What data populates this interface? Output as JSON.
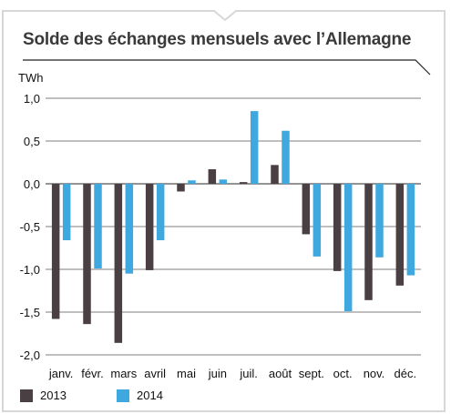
{
  "title": "Solde des échanges mensuels avec l’Allemagne",
  "colors": {
    "2013": "#4a3f43",
    "2014": "#3fa9df",
    "grid": "#555555",
    "frame": "#d7d7d7"
  },
  "chart_data": {
    "type": "bar",
    "title": "Solde des échanges mensuels avec l’Allemagne",
    "ylabel": "TWh",
    "xlabel": "",
    "ylim": [
      -2.0,
      1.0
    ],
    "yticks": [
      1.0,
      0.5,
      0.0,
      -0.5,
      -1.0,
      -1.5,
      -2.0
    ],
    "ytick_labels": [
      "1,0",
      "0,5",
      "0,0",
      "-0,5",
      "-1,0",
      "-1,5",
      "-2,0"
    ],
    "grid": true,
    "legend": "bottom-left",
    "categories": [
      "janv.",
      "févr.",
      "mars",
      "avril",
      "mai",
      "juin",
      "juil.",
      "août",
      "sept.",
      "oct.",
      "nov.",
      "déc."
    ],
    "series": [
      {
        "name": "2013",
        "color": "#4a3f43",
        "values": [
          -1.58,
          -1.64,
          -1.86,
          -1.01,
          -0.09,
          0.17,
          0.02,
          0.22,
          -0.59,
          -1.02,
          -1.36,
          -1.19
        ]
      },
      {
        "name": "2014",
        "color": "#3fa9df",
        "values": [
          -0.66,
          -0.99,
          -1.05,
          -0.66,
          0.04,
          0.05,
          0.85,
          0.62,
          -0.85,
          -1.49,
          -0.86,
          -1.07
        ]
      }
    ]
  }
}
